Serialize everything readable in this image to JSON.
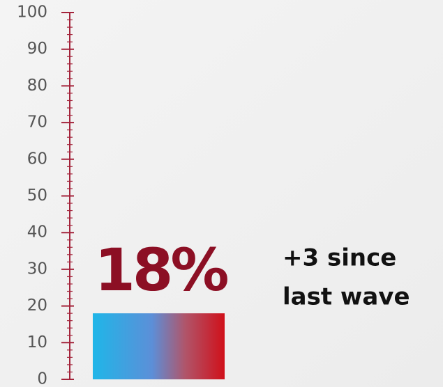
{
  "chart_data": {
    "type": "bar",
    "categories": [
      null
    ],
    "values": [
      18
    ],
    "value_labels": [
      "18%"
    ],
    "color": "#8c0f24",
    "axis_color": "#a3233a",
    "annotation": [
      "+3 since",
      "last wave"
    ],
    "ylim": [
      0,
      100
    ],
    "yticks": [
      0,
      10,
      20,
      30,
      40,
      50,
      60,
      70,
      80,
      90,
      100
    ],
    "minor_yticks": [
      0,
      2,
      4,
      6,
      8,
      10,
      12,
      14,
      16,
      18,
      20,
      22,
      24,
      26,
      28,
      30,
      32,
      34,
      36,
      38,
      40,
      42,
      44,
      46,
      48,
      50,
      52,
      54,
      56,
      58,
      60,
      62,
      64,
      66,
      68,
      70,
      72,
      74,
      76,
      78,
      80,
      82,
      84,
      86,
      88,
      90,
      92,
      94,
      96,
      98,
      100
    ]
  }
}
